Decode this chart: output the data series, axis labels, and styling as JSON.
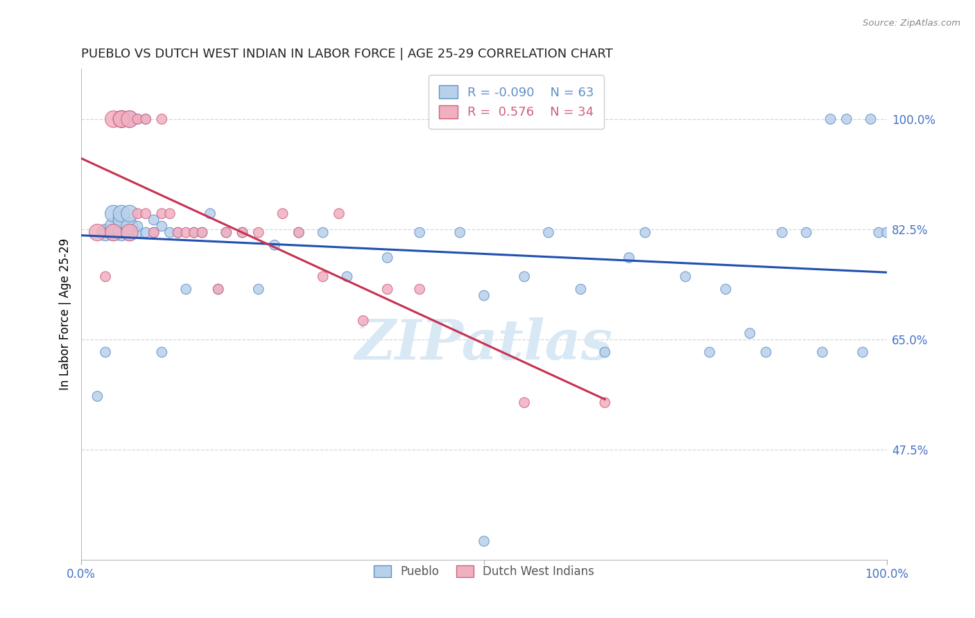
{
  "title": "PUEBLO VS DUTCH WEST INDIAN IN LABOR FORCE | AGE 25-29 CORRELATION CHART",
  "source": "Source: ZipAtlas.com",
  "ylabel": "In Labor Force | Age 25-29",
  "ytick_labels": [
    "100.0%",
    "82.5%",
    "65.0%",
    "47.5%"
  ],
  "ytick_values": [
    1.0,
    0.825,
    0.65,
    0.475
  ],
  "xlim": [
    0.0,
    1.0
  ],
  "ylim": [
    0.3,
    1.08
  ],
  "pueblo_color": "#b8d0ea",
  "dutch_color": "#f0b0c0",
  "pueblo_edge_color": "#6090c8",
  "dutch_edge_color": "#d06080",
  "trend_blue": "#2050b0",
  "trend_pink": "#c83050",
  "legend_R_pueblo": "-0.090",
  "legend_N_pueblo": "63",
  "legend_R_dutch": "0.576",
  "legend_N_dutch": "34",
  "pueblo_color_legend": "#b8d0ea",
  "dutch_color_legend": "#f0b0c0",
  "watermark_text": "ZIPatlas",
  "watermark_color": "#d8e8f5",
  "background_color": "#ffffff",
  "grid_color": "#cccccc",
  "tick_color": "#4472c4",
  "pueblo_x": [
    0.02,
    0.03,
    0.03,
    0.04,
    0.04,
    0.04,
    0.05,
    0.05,
    0.05,
    0.05,
    0.05,
    0.06,
    0.06,
    0.06,
    0.06,
    0.07,
    0.07,
    0.07,
    0.08,
    0.08,
    0.09,
    0.09,
    0.1,
    0.1,
    0.11,
    0.12,
    0.13,
    0.14,
    0.15,
    0.16,
    0.17,
    0.18,
    0.2,
    0.22,
    0.24,
    0.27,
    0.3,
    0.33,
    0.38,
    0.42,
    0.47,
    0.5,
    0.55,
    0.58,
    0.62,
    0.65,
    0.68,
    0.7,
    0.75,
    0.78,
    0.8,
    0.83,
    0.85,
    0.87,
    0.9,
    0.92,
    0.93,
    0.95,
    0.97,
    0.98,
    0.99,
    1.0,
    0.5
  ],
  "pueblo_y": [
    0.56,
    0.63,
    0.82,
    0.82,
    0.83,
    0.85,
    0.82,
    0.84,
    0.84,
    0.85,
    1.0,
    0.82,
    0.83,
    0.85,
    1.0,
    0.82,
    0.83,
    1.0,
    0.82,
    1.0,
    0.82,
    0.84,
    0.63,
    0.83,
    0.82,
    0.82,
    0.73,
    0.82,
    0.82,
    0.85,
    0.73,
    0.82,
    0.82,
    0.73,
    0.8,
    0.82,
    0.82,
    0.75,
    0.78,
    0.82,
    0.82,
    0.72,
    0.75,
    0.82,
    0.73,
    0.63,
    0.78,
    0.82,
    0.75,
    0.63,
    0.73,
    0.66,
    0.63,
    0.82,
    0.82,
    0.63,
    1.0,
    1.0,
    0.63,
    1.0,
    0.82,
    0.82,
    0.33
  ],
  "dutch_x": [
    0.02,
    0.03,
    0.04,
    0.04,
    0.05,
    0.05,
    0.05,
    0.06,
    0.06,
    0.07,
    0.07,
    0.08,
    0.08,
    0.09,
    0.1,
    0.1,
    0.11,
    0.12,
    0.13,
    0.14,
    0.15,
    0.17,
    0.18,
    0.2,
    0.22,
    0.25,
    0.27,
    0.3,
    0.32,
    0.35,
    0.38,
    0.42,
    0.55,
    0.65
  ],
  "dutch_y": [
    0.82,
    0.75,
    0.82,
    1.0,
    1.0,
    1.0,
    1.0,
    0.82,
    1.0,
    0.85,
    1.0,
    0.85,
    1.0,
    0.82,
    0.85,
    1.0,
    0.85,
    0.82,
    0.82,
    0.82,
    0.82,
    0.73,
    0.82,
    0.82,
    0.82,
    0.85,
    0.82,
    0.75,
    0.85,
    0.68,
    0.73,
    0.73,
    0.55,
    0.55
  ],
  "pueblo_marker_size": 110,
  "dutch_marker_size": 110,
  "large_pueblo_indices": [
    0,
    4,
    10
  ],
  "large_pueblo_size": 350
}
